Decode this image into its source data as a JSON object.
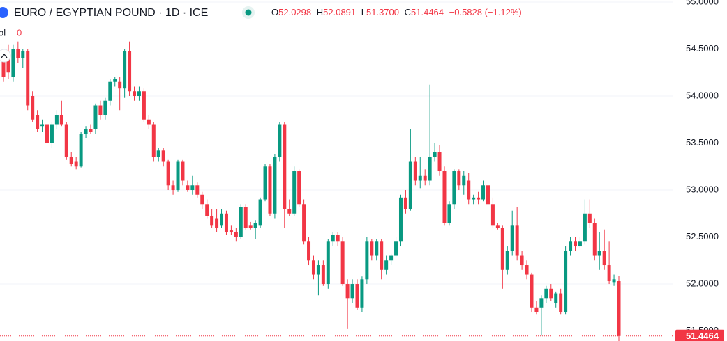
{
  "chart_data": {
    "type": "candlestick",
    "title": "EURO / EGYPTIAN POUND · 1D · ICE",
    "legend": {
      "o_label": "O",
      "o": "52.0298",
      "h_label": "H",
      "h": "52.0891",
      "l_label": "L",
      "l": "51.3700",
      "c_label": "C",
      "c": "51.4464",
      "change": "−0.5828 (−1.12%)"
    },
    "volume": {
      "label": "ol",
      "value": 0
    },
    "up_color": "#089981",
    "down_color": "#f23645",
    "ylim": [
      51.393,
      55.022
    ],
    "yticks": [
      {
        "value": 51.5,
        "label": "51.5000"
      },
      {
        "value": 52,
        "label": "52.0000"
      },
      {
        "value": 52.5,
        "label": "52.5000"
      },
      {
        "value": 53,
        "label": "53.0000"
      },
      {
        "value": 53.5,
        "label": "53.5000"
      },
      {
        "value": 54,
        "label": "54.0000"
      },
      {
        "value": 54.5,
        "label": "54.5000"
      },
      {
        "value": 55,
        "label": "55.0000"
      }
    ],
    "last_price": 51.4464,
    "grid": true,
    "candles": [
      [
        54.45,
        54.5,
        54.15,
        54.2
      ],
      [
        54.4,
        54.55,
        54.18,
        54.25
      ],
      [
        54.2,
        54.55,
        54.15,
        54.5
      ],
      [
        54.5,
        54.58,
        54.35,
        54.4
      ],
      [
        54.4,
        54.5,
        54.3,
        54.48
      ],
      [
        54.48,
        54.5,
        53.85,
        53.9
      ],
      [
        54.0,
        54.05,
        53.72,
        53.75
      ],
      [
        53.8,
        53.85,
        53.62,
        53.65
      ],
      [
        53.68,
        53.75,
        53.62,
        53.7
      ],
      [
        53.7,
        53.75,
        53.48,
        53.5
      ],
      [
        53.5,
        53.72,
        53.45,
        53.7
      ],
      [
        53.7,
        53.85,
        53.65,
        53.8
      ],
      [
        53.8,
        53.95,
        53.68,
        53.7
      ],
      [
        53.7,
        53.72,
        53.32,
        53.35
      ],
      [
        53.35,
        53.4,
        53.25,
        53.28
      ],
      [
        53.3,
        53.35,
        53.22,
        53.25
      ],
      [
        53.25,
        53.62,
        53.24,
        53.6
      ],
      [
        53.6,
        53.68,
        53.55,
        53.65
      ],
      [
        53.65,
        53.7,
        53.6,
        53.62
      ],
      [
        53.65,
        53.92,
        53.6,
        53.9
      ],
      [
        53.9,
        53.95,
        53.75,
        53.8
      ],
      [
        53.8,
        53.98,
        53.75,
        53.95
      ],
      [
        53.95,
        54.18,
        53.9,
        54.15
      ],
      [
        54.15,
        54.2,
        54.1,
        54.18
      ],
      [
        54.15,
        54.2,
        53.85,
        54.08
      ],
      [
        54.08,
        54.5,
        53.98,
        54.48
      ],
      [
        54.48,
        54.58,
        54.0,
        54.05
      ],
      [
        54.05,
        54.1,
        53.95,
        54.0
      ],
      [
        54.0,
        54.1,
        53.95,
        54.05
      ],
      [
        54.05,
        54.08,
        53.72,
        53.75
      ],
      [
        53.75,
        53.8,
        53.65,
        53.7
      ],
      [
        53.7,
        53.72,
        53.3,
        53.35
      ],
      [
        53.35,
        53.45,
        53.3,
        53.42
      ],
      [
        53.42,
        53.45,
        53.25,
        53.3
      ],
      [
        53.3,
        53.32,
        53.0,
        53.05
      ],
      [
        53.05,
        53.1,
        52.95,
        53.0
      ],
      [
        53.0,
        53.32,
        52.98,
        53.3
      ],
      [
        53.3,
        53.32,
        53.05,
        53.1
      ],
      [
        53.05,
        53.1,
        52.98,
        53.0
      ],
      [
        53.0,
        53.15,
        52.95,
        53.05
      ],
      [
        53.05,
        53.08,
        52.92,
        52.95
      ],
      [
        52.95,
        52.98,
        52.8,
        52.85
      ],
      [
        52.85,
        52.9,
        52.7,
        52.72
      ],
      [
        52.72,
        52.8,
        52.6,
        52.62
      ],
      [
        52.7,
        52.8,
        52.55,
        52.6
      ],
      [
        52.62,
        52.8,
        52.6,
        52.75
      ],
      [
        52.75,
        52.78,
        52.52,
        52.55
      ],
      [
        52.57,
        52.62,
        52.52,
        52.55
      ],
      [
        52.55,
        52.6,
        52.45,
        52.5
      ],
      [
        52.5,
        52.85,
        52.48,
        52.82
      ],
      [
        52.82,
        52.85,
        52.58,
        52.6
      ],
      [
        52.62,
        52.66,
        52.58,
        52.6
      ],
      [
        52.6,
        52.68,
        52.48,
        52.65
      ],
      [
        52.62,
        52.92,
        52.6,
        52.9
      ],
      [
        52.9,
        53.28,
        52.88,
        53.25
      ],
      [
        53.25,
        53.28,
        52.72,
        52.75
      ],
      [
        52.75,
        53.38,
        52.7,
        53.35
      ],
      [
        53.35,
        53.72,
        53.3,
        53.7
      ],
      [
        53.7,
        53.72,
        52.6,
        52.8
      ],
      [
        52.8,
        52.9,
        52.72,
        52.75
      ],
      [
        52.75,
        53.25,
        52.72,
        53.2
      ],
      [
        53.2,
        53.22,
        52.82,
        52.85
      ],
      [
        52.85,
        52.9,
        52.42,
        52.45
      ],
      [
        52.45,
        52.5,
        52.2,
        52.25
      ],
      [
        52.25,
        52.3,
        52.05,
        52.1
      ],
      [
        52.1,
        52.25,
        51.88,
        52.2
      ],
      [
        52.2,
        52.25,
        51.98,
        52.0
      ],
      [
        52.0,
        52.48,
        51.95,
        52.45
      ],
      [
        52.45,
        52.55,
        52.4,
        52.52
      ],
      [
        52.52,
        52.55,
        52.4,
        52.45
      ],
      [
        52.45,
        52.5,
        51.98,
        52.0
      ],
      [
        52.0,
        52.05,
        51.52,
        51.85
      ],
      [
        51.85,
        52.05,
        51.8,
        52.0
      ],
      [
        52.0,
        52.05,
        51.72,
        51.75
      ],
      [
        51.75,
        52.08,
        51.7,
        52.05
      ],
      [
        52.05,
        52.5,
        52.0,
        52.45
      ],
      [
        52.45,
        52.48,
        52.25,
        52.3
      ],
      [
        52.3,
        52.48,
        52.25,
        52.45
      ],
      [
        52.45,
        52.48,
        52.05,
        52.15
      ],
      [
        52.15,
        52.3,
        52.1,
        52.25
      ],
      [
        52.25,
        52.32,
        52.2,
        52.3
      ],
      [
        52.3,
        52.5,
        52.28,
        52.45
      ],
      [
        52.45,
        52.95,
        52.4,
        52.92
      ],
      [
        52.92,
        53.0,
        52.75,
        52.8
      ],
      [
        52.8,
        53.65,
        52.78,
        53.3
      ],
      [
        53.3,
        53.35,
        53.05,
        53.1
      ],
      [
        53.1,
        53.35,
        53.02,
        53.15
      ],
      [
        53.15,
        53.22,
        53.05,
        53.1
      ],
      [
        53.1,
        54.12,
        53.05,
        53.35
      ],
      [
        53.35,
        53.5,
        53.3,
        53.4
      ],
      [
        53.4,
        53.48,
        53.15,
        53.2
      ],
      [
        53.2,
        53.25,
        52.62,
        52.65
      ],
      [
        52.65,
        52.88,
        52.62,
        52.85
      ],
      [
        52.85,
        53.22,
        52.8,
        53.2
      ],
      [
        53.2,
        53.22,
        53.0,
        53.05
      ],
      [
        53.05,
        53.2,
        52.95,
        53.15
      ],
      [
        53.1,
        53.18,
        52.85,
        52.9
      ],
      [
        52.9,
        52.95,
        52.85,
        52.92
      ],
      [
        52.92,
        52.98,
        52.85,
        52.9
      ],
      [
        52.9,
        53.1,
        52.88,
        53.05
      ],
      [
        53.05,
        53.08,
        52.82,
        52.85
      ],
      [
        52.85,
        52.92,
        52.6,
        52.62
      ],
      [
        52.62,
        52.65,
        52.58,
        52.6
      ],
      [
        52.6,
        52.62,
        51.95,
        52.15
      ],
      [
        52.15,
        52.4,
        52.1,
        52.35
      ],
      [
        52.35,
        52.78,
        52.3,
        52.62
      ],
      [
        52.62,
        52.82,
        52.25,
        52.3
      ],
      [
        52.3,
        52.35,
        52.15,
        52.2
      ],
      [
        52.2,
        52.25,
        52.05,
        52.1
      ],
      [
        52.1,
        52.12,
        51.7,
        51.75
      ],
      [
        51.75,
        51.82,
        51.68,
        51.7
      ],
      [
        51.75,
        51.88,
        51.45,
        51.85
      ],
      [
        51.85,
        51.98,
        51.8,
        51.95
      ],
      [
        51.95,
        52.0,
        51.82,
        51.85
      ],
      [
        51.8,
        51.92,
        51.75,
        51.9
      ],
      [
        51.9,
        51.95,
        51.68,
        51.7
      ],
      [
        51.7,
        52.4,
        51.68,
        52.35
      ],
      [
        52.35,
        52.5,
        52.3,
        52.45
      ],
      [
        52.45,
        52.5,
        52.35,
        52.4
      ],
      [
        52.4,
        52.5,
        52.38,
        52.45
      ],
      [
        52.45,
        52.9,
        52.42,
        52.75
      ],
      [
        52.75,
        52.9,
        52.6,
        52.65
      ],
      [
        52.65,
        52.7,
        52.25,
        52.3
      ],
      [
        52.3,
        52.55,
        52.15,
        52.35
      ],
      [
        52.35,
        52.58,
        52.15,
        52.2
      ],
      [
        52.2,
        52.45,
        52.0,
        52.03
      ],
      [
        52.02,
        52.1,
        51.98,
        52.05
      ],
      [
        52.0298,
        52.0891,
        51.37,
        51.4464
      ]
    ]
  }
}
